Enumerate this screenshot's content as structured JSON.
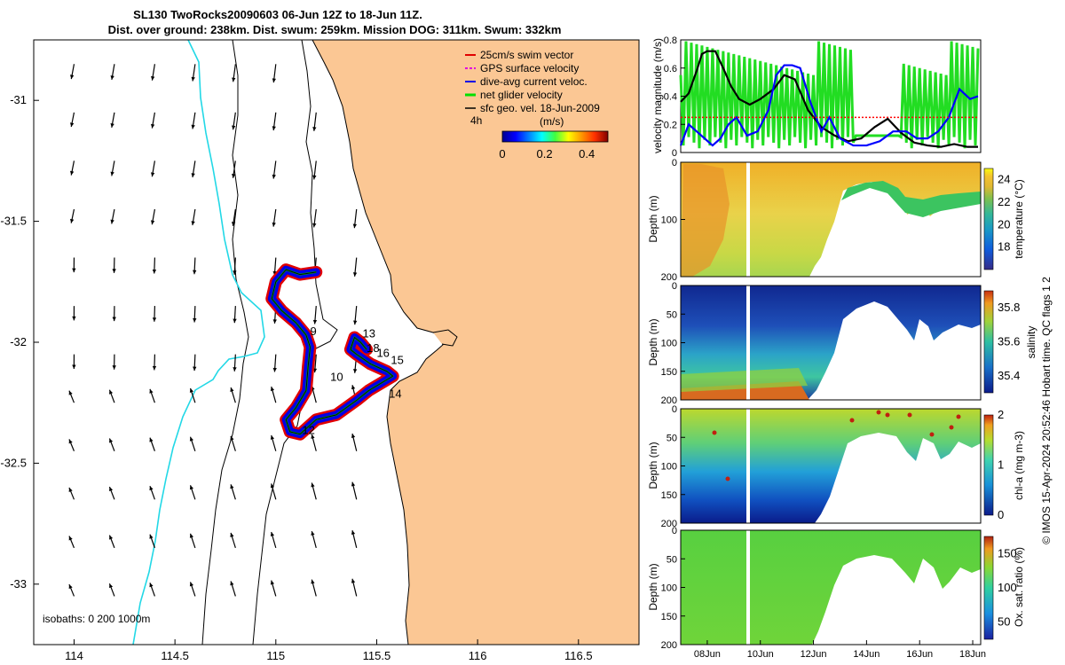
{
  "title": {
    "line1": "SL130 TwoRocks20090603 06-Jun 12Z to 18-Jun 11Z.",
    "line2": "Dist. over ground: 238km. Dist. swum: 259km. Mission DOG: 311km. Swum: 332km"
  },
  "colors": {
    "land": "#fbc794",
    "isobath_0": "#000000",
    "isobath_200": "#000000",
    "isobath_1000": "#22d8e6",
    "swim_vector": "#e00000",
    "gps_velocity": "#e000e0",
    "dive_avg": "#0000e6",
    "net_glider": "#00e000",
    "sfc_geo": "#000000"
  },
  "chart_data": [
    {
      "type": "map",
      "xlim": [
        113.8,
        116.8
      ],
      "ylim": [
        -33.25,
        -30.75
      ],
      "x_ticks": [
        "114",
        "114.5",
        "115",
        "115.5",
        "116",
        "116.5"
      ],
      "y_ticks": [
        "-31",
        "-31.5",
        "-32",
        "-32.5",
        "-33"
      ],
      "legend": {
        "placement": "top-right",
        "entries": [
          "25cm/s swim vector",
          "GPS surface velocity",
          "dive-avg current veloc.",
          "net glider velocity",
          "sfc geo. vel. 18-Jun-2009"
        ]
      },
      "colorbar": {
        "label": "(m/s)",
        "note": "4h",
        "ticks": [
          "0",
          "0.2",
          "0.4"
        ],
        "range": [
          0,
          0.5
        ]
      },
      "isobath_note": "isobaths: 0   200  1000m",
      "day_labels": [
        {
          "text": "9",
          "lon": 115.17,
          "lat": -31.97
        },
        {
          "text": "10",
          "lon": 115.27,
          "lat": -32.16
        },
        {
          "text": "12",
          "lon": 115.13,
          "lat": -32.38
        },
        {
          "text": "13",
          "lon": 115.43,
          "lat": -31.98
        },
        {
          "text": "15",
          "lon": 115.57,
          "lat": -32.09
        },
        {
          "text": "14",
          "lon": 115.56,
          "lat": -32.23
        },
        {
          "text": "16",
          "lon": 115.5,
          "lat": -32.06
        },
        {
          "text": "18",
          "lon": 115.45,
          "lat": -32.04
        }
      ],
      "track": [
        [
          115.2,
          -31.71
        ],
        [
          115.12,
          -31.72
        ],
        [
          115.05,
          -31.7
        ],
        [
          115.0,
          -31.75
        ],
        [
          114.98,
          -31.82
        ],
        [
          115.03,
          -31.87
        ],
        [
          115.1,
          -31.92
        ],
        [
          115.15,
          -31.97
        ],
        [
          115.17,
          -32.02
        ],
        [
          115.16,
          -32.1
        ],
        [
          115.15,
          -32.2
        ],
        [
          115.1,
          -32.27
        ],
        [
          115.05,
          -32.32
        ],
        [
          115.07,
          -32.37
        ],
        [
          115.12,
          -32.38
        ],
        [
          115.2,
          -32.32
        ],
        [
          115.3,
          -32.3
        ],
        [
          115.4,
          -32.24
        ],
        [
          115.46,
          -32.2
        ],
        [
          115.58,
          -32.14
        ],
        [
          115.55,
          -32.12
        ],
        [
          115.47,
          -32.09
        ],
        [
          115.4,
          -32.05
        ],
        [
          115.37,
          -32.03
        ],
        [
          115.39,
          -31.98
        ],
        [
          115.42,
          -32.0
        ],
        [
          115.45,
          -32.03
        ]
      ]
    },
    {
      "type": "line",
      "ylabel": "velocity magnitude (m/s)",
      "ylim": [
        0,
        0.8
      ],
      "y_ticks": [
        "0",
        "0.2",
        "0.4",
        "0.6",
        "0.8"
      ],
      "xlim": [
        "07-Jun",
        "18.3-Jun"
      ],
      "series": [
        {
          "color": "black",
          "x": [
            7.0,
            7.3,
            7.6,
            7.8,
            8.0,
            8.3,
            8.6,
            8.9,
            9.2,
            9.6,
            10.0,
            10.5,
            10.9,
            11.3,
            11.8,
            12.3,
            12.8,
            13.3,
            13.8,
            14.3,
            14.8,
            15.3,
            15.8,
            16.3,
            16.8,
            17.3,
            17.8,
            18.2
          ],
          "values": [
            0.36,
            0.42,
            0.58,
            0.7,
            0.72,
            0.72,
            0.6,
            0.47,
            0.38,
            0.34,
            0.38,
            0.45,
            0.55,
            0.52,
            0.3,
            0.18,
            0.12,
            0.08,
            0.1,
            0.18,
            0.24,
            0.14,
            0.07,
            0.05,
            0.04,
            0.06,
            0.04,
            0.04
          ]
        },
        {
          "color": "blue",
          "x": [
            7.0,
            7.3,
            7.6,
            7.9,
            8.2,
            8.5,
            8.8,
            9.1,
            9.5,
            9.9,
            10.3,
            10.6,
            10.9,
            11.2,
            11.5,
            11.9,
            12.3,
            12.6,
            13.0,
            13.5,
            14.0,
            14.5,
            15.0,
            15.5,
            15.9,
            16.3,
            16.7,
            17.1,
            17.5,
            17.9,
            18.2
          ],
          "values": [
            0.05,
            0.2,
            0.15,
            0.1,
            0.05,
            0.1,
            0.2,
            0.25,
            0.12,
            0.15,
            0.3,
            0.55,
            0.62,
            0.62,
            0.6,
            0.35,
            0.15,
            0.25,
            0.1,
            0.05,
            0.05,
            0.08,
            0.15,
            0.15,
            0.1,
            0.1,
            0.15,
            0.25,
            0.45,
            0.38,
            0.4
          ]
        },
        {
          "color": "red",
          "x": [
            7.0,
            18.2
          ],
          "values": [
            0.25,
            0.25
          ]
        }
      ]
    },
    {
      "type": "heatmap",
      "ylabel": "Depth (m)",
      "cbar_label": "temperature (°C)",
      "cbar_ticks": [
        "18",
        "20",
        "22",
        "24"
      ],
      "y_ticks": [
        "0",
        "100",
        "200"
      ],
      "range": [
        16,
        25
      ]
    },
    {
      "type": "heatmap",
      "ylabel": "Depth (m)",
      "cbar_label": "salinity",
      "cbar_ticks": [
        "35.4",
        "35.6",
        "35.8"
      ],
      "y_ticks": [
        "0",
        "50",
        "100",
        "150",
        "200"
      ],
      "range": [
        35.3,
        35.9
      ]
    },
    {
      "type": "heatmap",
      "ylabel": "Depth (m)",
      "cbar_label": "chl-a (mg m-3)",
      "cbar_ticks": [
        "0",
        "1",
        "2"
      ],
      "y_ticks": [
        "0",
        "50",
        "100",
        "150",
        "200"
      ],
      "range": [
        0,
        2
      ]
    },
    {
      "type": "heatmap",
      "ylabel": "Depth (m)",
      "cbar_label": "Ox. sat. ratio (%)",
      "cbar_ticks": [
        "50",
        "100",
        "150"
      ],
      "y_ticks": [
        "0",
        "50",
        "100",
        "150",
        "200"
      ],
      "range": [
        25,
        175
      ],
      "x_ticks": [
        "08Jun",
        "10Jun",
        "12Jun",
        "14Jun",
        "16Jun",
        "18Jun"
      ]
    }
  ],
  "footer": {
    "credit": "© IMOS 15-Apr-2024 20:52:46 Hobart time. QC flags 1  2"
  }
}
